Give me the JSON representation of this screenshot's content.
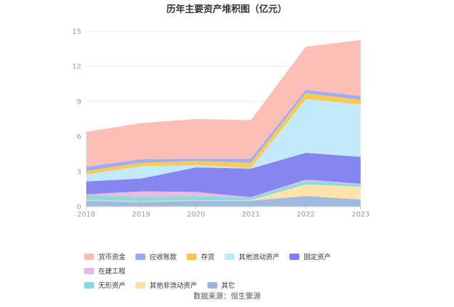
{
  "chart_data": {
    "type": "area",
    "stacked": true,
    "title": "历年主要资产堆积图（亿元）",
    "x": [
      "2018",
      "2019",
      "2020",
      "2021",
      "2022",
      "2023"
    ],
    "ylim": [
      0,
      15
    ],
    "yticks": [
      0,
      3,
      6,
      9,
      12,
      15
    ],
    "grid": true,
    "legend_position": "bottom",
    "series": [
      {
        "name": "其它",
        "color": "#9ab6dc",
        "values": [
          0.5,
          0.4,
          0.5,
          0.5,
          0.9,
          0.6
        ]
      },
      {
        "name": "其他非流动资产",
        "color": "#fde0a8",
        "values": [
          0.05,
          0.05,
          0.05,
          0.05,
          1.0,
          1.1
        ]
      },
      {
        "name": "无形资产",
        "color": "#85d8dc",
        "values": [
          0.45,
          0.35,
          0.35,
          0.2,
          0.3,
          0.2
        ]
      },
      {
        "name": "在建工程",
        "color": "#e6b8e2",
        "values": [
          0.05,
          0.5,
          0.35,
          0.05,
          0.1,
          0.05
        ]
      },
      {
        "name": "固定资产",
        "color": "#7f7ff0",
        "values": [
          1.1,
          1.1,
          2.1,
          2.45,
          2.3,
          2.3
        ]
      },
      {
        "name": "其他流动资产",
        "color": "#bfe9fb",
        "values": [
          0.6,
          1.05,
          0.2,
          0.05,
          4.6,
          4.5
        ]
      },
      {
        "name": "存货",
        "color": "#f9c84a",
        "values": [
          0.3,
          0.3,
          0.35,
          0.45,
          0.5,
          0.4
        ]
      },
      {
        "name": "应收账款",
        "color": "#9aa9f6",
        "values": [
          0.35,
          0.3,
          0.2,
          0.35,
          0.3,
          0.3
        ]
      },
      {
        "name": "货币资金",
        "color": "#fcbcb4",
        "values": [
          3.0,
          3.1,
          3.4,
          3.3,
          3.7,
          4.8
        ]
      }
    ]
  },
  "legend": {
    "row1": [
      {
        "label": "货币资金",
        "color": "#fcbcb4"
      },
      {
        "label": "应收账款",
        "color": "#9aa9f6"
      },
      {
        "label": "存货",
        "color": "#f9c84a"
      },
      {
        "label": "其他流动资产",
        "color": "#bfe9fb"
      },
      {
        "label": "固定资产",
        "color": "#7f7ff0"
      },
      {
        "label": "在建工程",
        "color": "#e6b8e2"
      }
    ],
    "row2": [
      {
        "label": "无形资产",
        "color": "#85d8dc"
      },
      {
        "label": "其他非流动资产",
        "color": "#fde0a8"
      },
      {
        "label": "其它",
        "color": "#9ab6dc"
      }
    ]
  },
  "source": "数据来源：恒生聚源"
}
